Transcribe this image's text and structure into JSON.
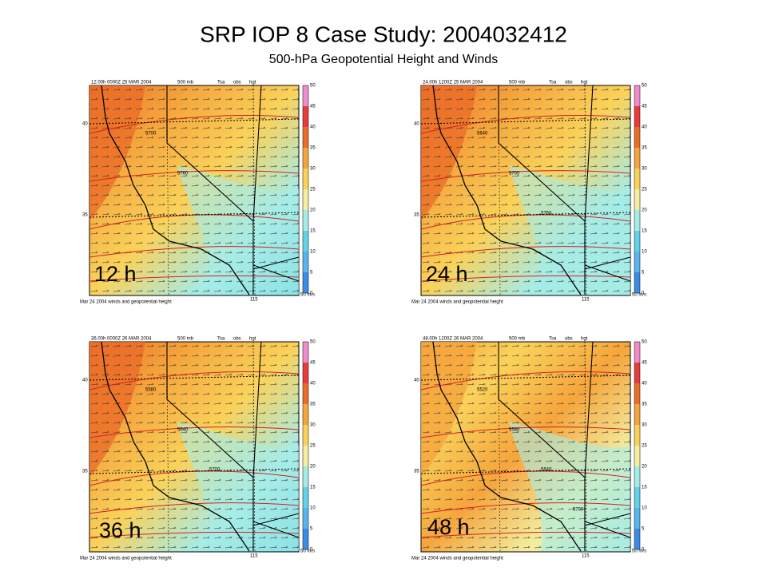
{
  "header": {
    "title": "SRP IOP 8 Case Study: 2004032412",
    "subtitle": "500-hPa Geopotential Height and Winds"
  },
  "panels": [
    {
      "forecast_label": "12 h",
      "valid": "12.00h  0000Z 25 MAR 2004",
      "level": "500 mb",
      "tsa": "Tsa",
      "obs": "obs",
      "field": "hgt",
      "contours": [
        "5700",
        "5760"
      ]
    },
    {
      "forecast_label": "24 h",
      "valid": "24.00h  1200Z 25 MAR 2004",
      "level": "500 mb",
      "tsa": "Tsa",
      "obs": "obs",
      "field": "hgt",
      "contours": [
        "5640",
        "5700",
        "5760"
      ]
    },
    {
      "forecast_label": "36 h",
      "valid": "36.00h  0000Z 26 MAR 2004",
      "level": "500 mb",
      "tsa": "Tsa",
      "obs": "obs",
      "field": "hgt",
      "contours": [
        "5580",
        "5640",
        "5700"
      ]
    },
    {
      "forecast_label": "48 h",
      "valid": "48.00h  1200Z 26 MAR 2004",
      "level": "500 mb",
      "tsa": "Tsa",
      "obs": "obs",
      "field": "hgt",
      "contours": [
        "5520",
        "5580",
        "5640",
        "5700"
      ]
    }
  ],
  "footer": "Mar 24 2004  winds and geopotential height",
  "vector_scale": "50 m/s",
  "lat_labels": [
    "40",
    "35"
  ],
  "lon_label": "115",
  "colorbar": {
    "levels": [
      0,
      5,
      10,
      15,
      20,
      25,
      30,
      35,
      40,
      45,
      50
    ],
    "colors": [
      "#3c8ce6",
      "#5ab4f0",
      "#64d2e6",
      "#a6ece6",
      "#f3eea0",
      "#fad25a",
      "#f5a53c",
      "#eb6e28",
      "#e63c3c",
      "#f08cc8"
    ]
  }
}
